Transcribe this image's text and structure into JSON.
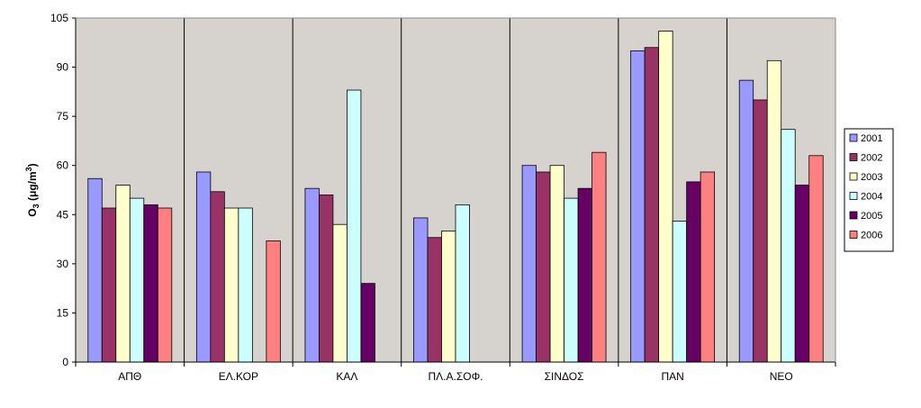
{
  "chart_data": {
    "type": "bar",
    "title": "",
    "ylabel_main": "O",
    "ylabel_sub": "3",
    "ylabel_paren": " (μg/m",
    "ylabel_sup": "3",
    "ylabel_close": ")",
    "ylim": [
      0,
      105
    ],
    "yticks": [
      "0",
      "15",
      "30",
      "45",
      "60",
      "75",
      "90",
      "105"
    ],
    "grid": false,
    "legend_position": "right",
    "plot_background": "#d6d3cf",
    "categories": [
      "ΑΠΘ",
      "ΕΛ.ΚΟΡ",
      "ΚΑΛ",
      "ΠΛ.Α.ΣΟΦ.",
      "ΣΙΝΔΟΣ",
      "ΠΑΝ",
      "ΝΕΟ"
    ],
    "series": [
      {
        "name": "2001",
        "color": "#9999ff",
        "values": [
          56,
          58,
          53,
          44,
          60,
          95,
          86
        ]
      },
      {
        "name": "2002",
        "color": "#993366",
        "values": [
          47,
          52,
          51,
          38,
          58,
          96,
          80
        ]
      },
      {
        "name": "2003",
        "color": "#ffffcc",
        "values": [
          54,
          47,
          42,
          40,
          60,
          101,
          92
        ]
      },
      {
        "name": "2004",
        "color": "#ccffff",
        "values": [
          50,
          47,
          83,
          48,
          50,
          43,
          71
        ]
      },
      {
        "name": "2005",
        "color": "#660066",
        "values": [
          48,
          null,
          24,
          null,
          53,
          55,
          54
        ]
      },
      {
        "name": "2006",
        "color": "#ff8080",
        "values": [
          47,
          37,
          null,
          null,
          64,
          58,
          63
        ]
      }
    ]
  }
}
